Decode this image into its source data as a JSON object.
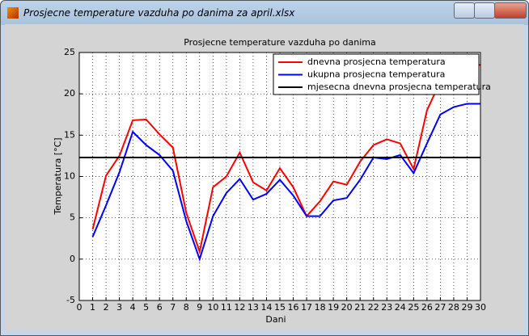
{
  "window": {
    "title": "Prosjecne temperature vazduha po danima za april.xlsx"
  },
  "chart_data": {
    "type": "line",
    "title": "Prosjecne temperature vazduha po danima",
    "x_label": "Dani",
    "y_label": "Temperatura [°C]",
    "x": [
      1,
      2,
      3,
      4,
      5,
      6,
      7,
      8,
      9,
      10,
      11,
      12,
      13,
      14,
      15,
      16,
      17,
      18,
      19,
      20,
      21,
      22,
      23,
      24,
      25,
      26,
      27,
      28,
      29,
      30
    ],
    "series": [
      {
        "name": "dnevna prosjecna temperatura",
        "color": "#ff0000",
        "values": [
          3.6,
          10.1,
          12.5,
          16.8,
          16.9,
          15.1,
          13.5,
          5.6,
          0.9,
          8.7,
          10.0,
          12.9,
          9.3,
          8.3,
          11.0,
          8.7,
          5.2,
          7.0,
          9.4,
          9.0,
          11.8,
          13.8,
          14.5,
          14.0,
          10.9,
          18.0,
          21.5,
          22.5,
          23.5,
          23.5
        ]
      },
      {
        "name": "ukupna prosjecna temperatura",
        "color": "#0000ff",
        "values": [
          2.7,
          6.5,
          10.5,
          15.4,
          13.8,
          12.6,
          10.7,
          4.6,
          0,
          5.2,
          8.0,
          9.7,
          7.2,
          7.9,
          9.6,
          7.7,
          5.2,
          5.2,
          7.1,
          7.4,
          9.6,
          12.3,
          12.1,
          12.6,
          10.4,
          14.0,
          17.5,
          18.4,
          18.8,
          18.8
        ]
      },
      {
        "name": "mjesecna dnevna prosjecna temperatura",
        "color": "#000000",
        "x": [
          0,
          30
        ],
        "values": [
          12.3,
          12.3
        ]
      }
    ],
    "xlim": [
      0,
      30
    ],
    "xticks": [
      0,
      1,
      2,
      3,
      4,
      5,
      6,
      7,
      8,
      9,
      10,
      11,
      12,
      13,
      14,
      15,
      16,
      17,
      18,
      19,
      20,
      21,
      22,
      23,
      24,
      25,
      26,
      27,
      28,
      29,
      30
    ],
    "ylim": [
      -5,
      25
    ],
    "yticks": [
      -5,
      0,
      5,
      10,
      15,
      20,
      25
    ],
    "grid": true,
    "legend": "upper-right"
  }
}
